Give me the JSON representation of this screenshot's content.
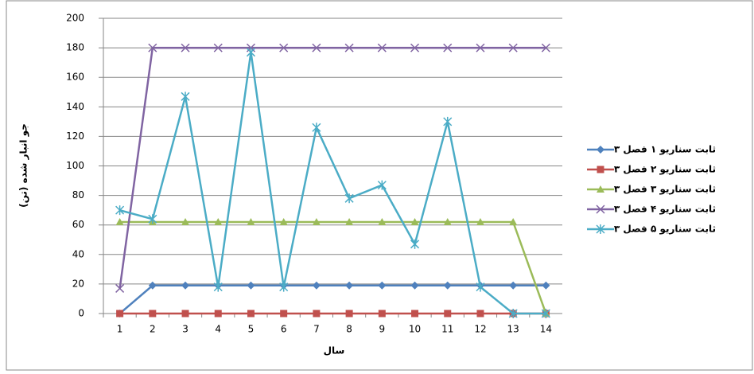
{
  "chart_data": {
    "type": "line",
    "x_label": "سال",
    "y_label": "جو انبار شده (تن)",
    "categories": [
      "1",
      "2",
      "3",
      "4",
      "5",
      "6",
      "7",
      "8",
      "9",
      "10",
      "11",
      "12",
      "13",
      "14"
    ],
    "series": [
      {
        "name": "ثابت سناریو ۱ فصل ۳",
        "color": "#4f81bd",
        "marker": "diamond",
        "values": [
          0,
          19,
          19,
          19,
          19,
          19,
          19,
          19,
          19,
          19,
          19,
          19,
          19,
          19
        ]
      },
      {
        "name": "ثابت سناریو ۲ فصل ۳",
        "color": "#c0504d",
        "marker": "square",
        "values": [
          0,
          0,
          0,
          0,
          0,
          0,
          0,
          0,
          0,
          0,
          0,
          0,
          0,
          0
        ]
      },
      {
        "name": "ثابت سناریو ۳ فصل ۳",
        "color": "#9bbb59",
        "marker": "triangle",
        "values": [
          62,
          62,
          62,
          62,
          62,
          62,
          62,
          62,
          62,
          62,
          62,
          62,
          62,
          0
        ]
      },
      {
        "name": "ثابت سناریو ۴ فصل ۳",
        "color": "#8064a2",
        "marker": "x",
        "values": [
          17,
          180,
          180,
          180,
          180,
          180,
          180,
          180,
          180,
          180,
          180,
          180,
          180,
          180
        ]
      },
      {
        "name": "ثابت سناریو ۵ فصل ۳",
        "color": "#4bacc6",
        "marker": "star",
        "values": [
          70,
          64,
          147,
          18,
          177,
          18,
          126,
          78,
          87,
          47,
          130,
          18,
          0,
          0
        ]
      }
    ],
    "ylim": [
      0,
      200
    ],
    "yticks": [
      0,
      20,
      40,
      60,
      80,
      100,
      120,
      140,
      160,
      180,
      200
    ],
    "grid": true,
    "legend": "right"
  }
}
